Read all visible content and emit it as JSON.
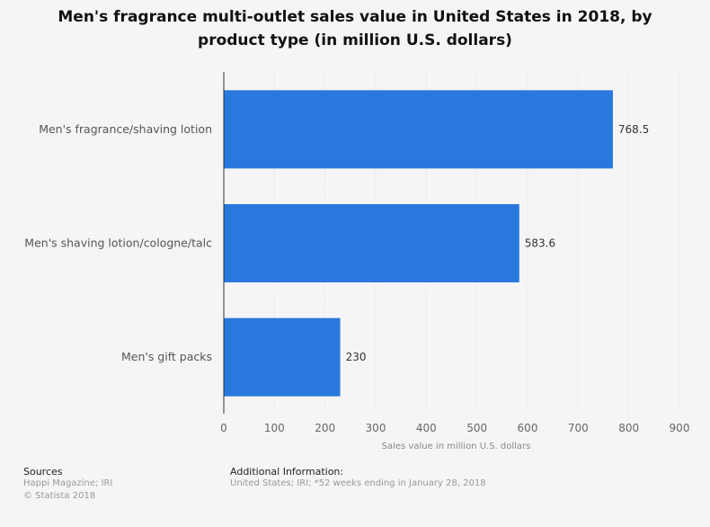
{
  "chart_data": {
    "type": "bar",
    "orientation": "horizontal",
    "title": "Men's fragrance multi-outlet sales value in United States in 2018, by product type (in million U.S. dollars)",
    "categories": [
      "Men's fragrance/shaving lotion",
      "Men's shaving lotion/cologne/talc",
      "Men's gift packs"
    ],
    "values": [
      768.5,
      583.6,
      230
    ],
    "value_labels": [
      "768.5",
      "583.6",
      "230"
    ],
    "xlabel": "Sales value in million U.S. dollars",
    "ylabel": "",
    "xlim": [
      0,
      900
    ],
    "ticks": [
      "0",
      "100",
      "200",
      "300",
      "400",
      "500",
      "600",
      "700",
      "800",
      "900"
    ],
    "grid": true,
    "bar_color": "#2878de"
  },
  "footer": {
    "sources_title": "Sources",
    "sources": "Happi Magazine; IRI",
    "copyright": "© Statista 2018",
    "additional_title": "Additional Information:",
    "additional": "United States; IRI; *52 weeks ending in January 28, 2018"
  }
}
